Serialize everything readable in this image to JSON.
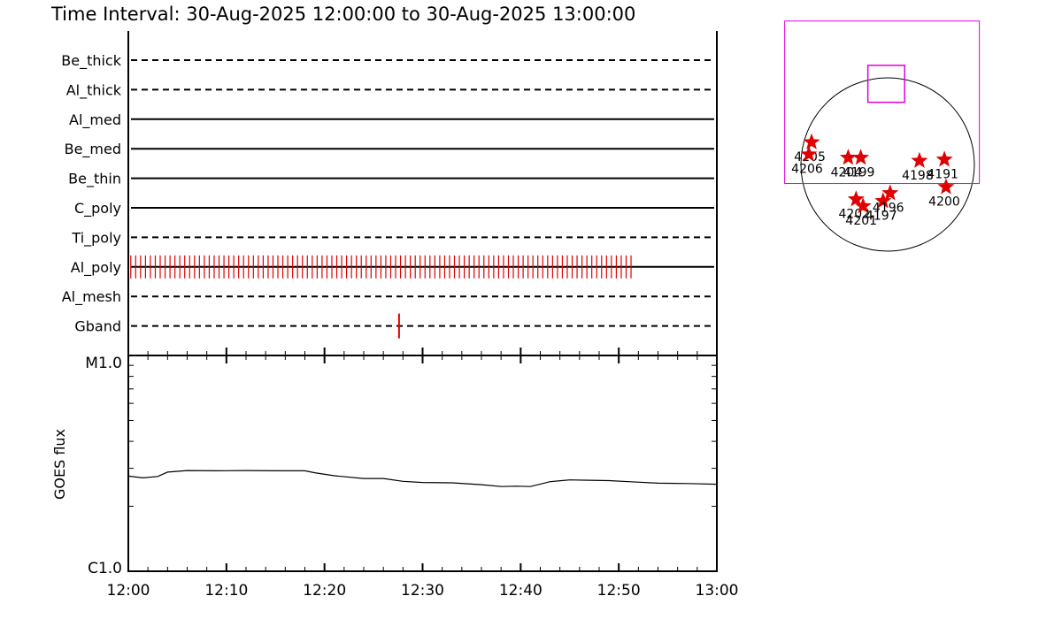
{
  "title": "Time Interval: 30-Aug-2025 12:00:00 to 30-Aug-2025 13:00:00",
  "colors": {
    "event": "#e00000",
    "fov": "#e000e0",
    "axis": "#000000"
  },
  "chart_data": [
    {
      "type": "timeline",
      "x_range_minutes": [
        0,
        60
      ],
      "rows": [
        {
          "label": "Be_thick",
          "line": "dashed",
          "events": []
        },
        {
          "label": "Al_thick",
          "line": "dashed",
          "events": []
        },
        {
          "label": "Al_med",
          "line": "solid",
          "events": []
        },
        {
          "label": "Be_med",
          "line": "solid",
          "events": []
        },
        {
          "label": "Be_thin",
          "line": "solid",
          "events": []
        },
        {
          "label": "C_poly",
          "line": "solid",
          "events": []
        },
        {
          "label": "Ti_poly",
          "line": "dashed",
          "events": []
        },
        {
          "label": "Al_poly",
          "line": "solid",
          "events": {
            "start": 0.25,
            "end": 51.5,
            "interval": 0.5
          }
        },
        {
          "label": "Al_mesh",
          "line": "dashed",
          "events": []
        },
        {
          "label": "Gband",
          "line": "dashed",
          "events": [
            27.6
          ]
        }
      ]
    },
    {
      "type": "line",
      "ylabel": "GOES flux",
      "y_scale": "log",
      "y_ticks": [
        "M1.0",
        "C1.0"
      ],
      "ylim": [
        1e-06,
        1e-05
      ],
      "x_tick_labels": [
        "12:00",
        "12:10",
        "12:20",
        "12:30",
        "12:40",
        "12:50",
        "13:00"
      ],
      "x_minutes": [
        0,
        1.5,
        3,
        4,
        6,
        9,
        12,
        15,
        18,
        19,
        21,
        24,
        26,
        28,
        30,
        33,
        36,
        38,
        39.5,
        41,
        43,
        45,
        47,
        49,
        51,
        54,
        57,
        60
      ],
      "y_values": [
        2.76e-06,
        2.71e-06,
        2.75e-06,
        2.88e-06,
        2.93e-06,
        2.92e-06,
        2.93e-06,
        2.92e-06,
        2.92e-06,
        2.86e-06,
        2.77e-06,
        2.69e-06,
        2.69e-06,
        2.61e-06,
        2.58e-06,
        2.57e-06,
        2.52e-06,
        2.47e-06,
        2.48e-06,
        2.47e-06,
        2.6e-06,
        2.65e-06,
        2.64e-06,
        2.63e-06,
        2.6e-06,
        2.56e-06,
        2.55e-06,
        2.53e-06
      ]
    },
    {
      "type": "scatter",
      "label": "active-region-map",
      "solar_radius_arcsec": 960,
      "points": [
        {
          "label": "4205",
          "x": -842,
          "y": 247
        },
        {
          "label": "4206",
          "x": -872,
          "y": 112
        },
        {
          "label": "4204",
          "x": -437,
          "y": 75
        },
        {
          "label": "4199",
          "x": -298,
          "y": 75
        },
        {
          "label": "4202",
          "x": -350,
          "y": -385
        },
        {
          "label": "4201",
          "x": -272,
          "y": -461
        },
        {
          "label": "4197",
          "x": -51,
          "y": -405
        },
        {
          "label": "4196",
          "x": 27,
          "y": -317
        },
        {
          "label": "4198",
          "x": 352,
          "y": 41
        },
        {
          "label": "4191",
          "x": 628,
          "y": 55
        },
        {
          "label": "4200",
          "x": 646,
          "y": -250
        }
      ],
      "fov_boxes": [
        {
          "x0": -1140,
          "x1": 1015,
          "y0": -211,
          "y1": 1589
        },
        {
          "x0": -219,
          "x1": 188,
          "y0": 689,
          "y1": 1098
        }
      ]
    }
  ]
}
